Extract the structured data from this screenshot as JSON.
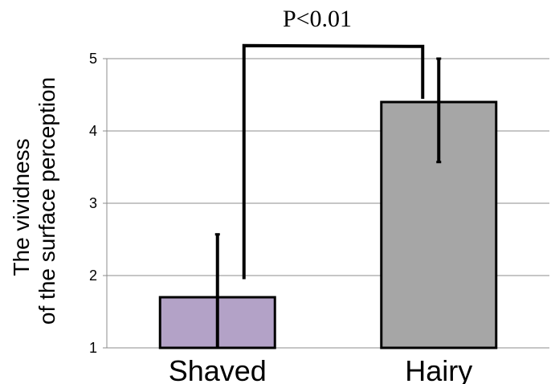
{
  "chart_data": {
    "type": "bar",
    "title": "",
    "xlabel": "",
    "ylabel": [
      "The vividness",
      "of the surface perception"
    ],
    "categories": [
      "Shaved",
      "Hairy"
    ],
    "values": [
      1.7,
      4.4
    ],
    "error_bars": [
      {
        "low": 1.0,
        "high": 2.57
      },
      {
        "low": 3.57,
        "high": 5.0
      }
    ],
    "colors": [
      "#b3a2c7",
      "#a6a6a6"
    ],
    "ylim": [
      1,
      5
    ],
    "yticks": [
      1,
      2,
      3,
      4,
      5
    ],
    "grid": true,
    "significance": {
      "label": "P<0.01",
      "from_category": "Shaved",
      "to_category": "Hairy",
      "left_y": 1.95,
      "right_y": 4.4,
      "top_y": 5.18
    }
  }
}
